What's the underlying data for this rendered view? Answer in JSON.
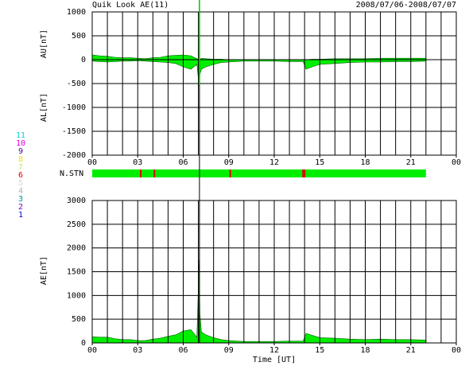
{
  "header": {
    "title": "Quik Look AE(11)",
    "date_range": "2008/07/06-2008/07/07"
  },
  "station_legend": [
    {
      "label": "11",
      "color": "#00d8d8"
    },
    {
      "label": "10",
      "color": "#e000e0"
    },
    {
      "label": "9",
      "color": "#4000a0"
    },
    {
      "label": "8",
      "color": "#f0e000"
    },
    {
      "label": "7",
      "color": "#c8e070"
    },
    {
      "label": "6",
      "color": "#e00000"
    },
    {
      "label": "5",
      "color": "#d8d8d8"
    },
    {
      "label": "4",
      "color": "#b0b0b0"
    },
    {
      "label": "3",
      "color": "#009090"
    },
    {
      "label": "2",
      "color": "#8000c0"
    },
    {
      "label": "1",
      "color": "#0000e0"
    }
  ],
  "station_bar": {
    "label": "N.STN",
    "xlim": [
      0,
      22
    ],
    "color": "#00ee00",
    "mark_color": "#e00000",
    "marks_x": [
      3.2,
      4.1,
      9.1,
      13.9,
      14.0
    ]
  },
  "marker_x": 7.07,
  "chart_data": [
    {
      "type": "area",
      "ylabel_upper": "AU[nT]",
      "ylabel_lower": "AL[nT]",
      "x": [
        0,
        0.5,
        1,
        1.5,
        2,
        2.5,
        3,
        3.5,
        4,
        4.5,
        5,
        5.5,
        6,
        6.5,
        6.9,
        7.05,
        7.1,
        7.2,
        7.5,
        8,
        8.5,
        9,
        10,
        11,
        12,
        13,
        13.9,
        14.1,
        14.5,
        15,
        16,
        17,
        18,
        19,
        20,
        21,
        22
      ],
      "series": [
        {
          "color": "#00ee00",
          "values": [
            100,
            80,
            70,
            50,
            40,
            40,
            30,
            20,
            40,
            50,
            80,
            90,
            100,
            80,
            20,
            0,
            0,
            30,
            20,
            10,
            10,
            0,
            0,
            0,
            0,
            0,
            0,
            0,
            10,
            10,
            20,
            20,
            20,
            30,
            30,
            30,
            30
          ]
        },
        {
          "color": "#00ee00",
          "values": [
            -30,
            -40,
            -50,
            -40,
            -30,
            -30,
            -20,
            -30,
            -40,
            -50,
            -60,
            -80,
            -150,
            -200,
            -100,
            -550,
            -300,
            -200,
            -150,
            -100,
            -60,
            -50,
            -30,
            -30,
            -30,
            -40,
            -40,
            -200,
            -150,
            -100,
            -80,
            -60,
            -50,
            -50,
            -40,
            -40,
            -30
          ]
        }
      ],
      "xlim": [
        0,
        24
      ],
      "xticks": [
        {
          "value": 0,
          "label": "00"
        },
        {
          "value": 3,
          "label": "03"
        },
        {
          "value": 6,
          "label": "06"
        },
        {
          "value": 9,
          "label": "09"
        },
        12,
        15,
        18,
        21,
        {
          "value": 24,
          "label": "00"
        }
      ],
      "xgrid": [
        0,
        1,
        2,
        3,
        4,
        5,
        6,
        7,
        8,
        9,
        10,
        11,
        12,
        13,
        14,
        15,
        16,
        17,
        18,
        19,
        20,
        21,
        22,
        23,
        24
      ],
      "ylim": [
        -2000,
        1000
      ],
      "yticks": [
        -2000,
        -1500,
        -1000,
        -500,
        0,
        500,
        1000
      ]
    },
    {
      "type": "area",
      "ylabel": "AE[nT]",
      "xlabel": "Time [UT]",
      "x": [
        0,
        0.5,
        1,
        1.5,
        2,
        2.5,
        3,
        3.5,
        4,
        4.5,
        5,
        5.5,
        6,
        6.5,
        6.9,
        7.05,
        7.1,
        7.2,
        7.5,
        8,
        8.5,
        9,
        10,
        11,
        12,
        13,
        13.9,
        14.1,
        14.5,
        15,
        16,
        17,
        18,
        19,
        20,
        21,
        22
      ],
      "series": [
        {
          "color": "#00ee00",
          "values": [
            130,
            120,
            120,
            90,
            70,
            70,
            50,
            50,
            80,
            100,
            140,
            170,
            250,
            280,
            120,
            1750,
            600,
            230,
            170,
            110,
            70,
            50,
            30,
            30,
            30,
            40,
            40,
            200,
            160,
            110,
            100,
            80,
            70,
            80,
            70,
            70,
            60
          ]
        }
      ],
      "xlim": [
        0,
        24
      ],
      "xticks": [
        {
          "value": 0,
          "label": "00"
        },
        {
          "value": 3,
          "label": "03"
        },
        {
          "value": 6,
          "label": "06"
        },
        {
          "value": 9,
          "label": "09"
        },
        12,
        15,
        18,
        21,
        {
          "value": 24,
          "label": "00"
        }
      ],
      "xgrid": [
        0,
        1,
        2,
        3,
        4,
        5,
        6,
        7,
        8,
        9,
        10,
        11,
        12,
        13,
        14,
        15,
        16,
        17,
        18,
        19,
        20,
        21,
        22,
        23,
        24
      ],
      "ylim": [
        0,
        3000
      ],
      "yticks": [
        0,
        500,
        1000,
        1500,
        2000,
        2500,
        3000
      ]
    }
  ]
}
